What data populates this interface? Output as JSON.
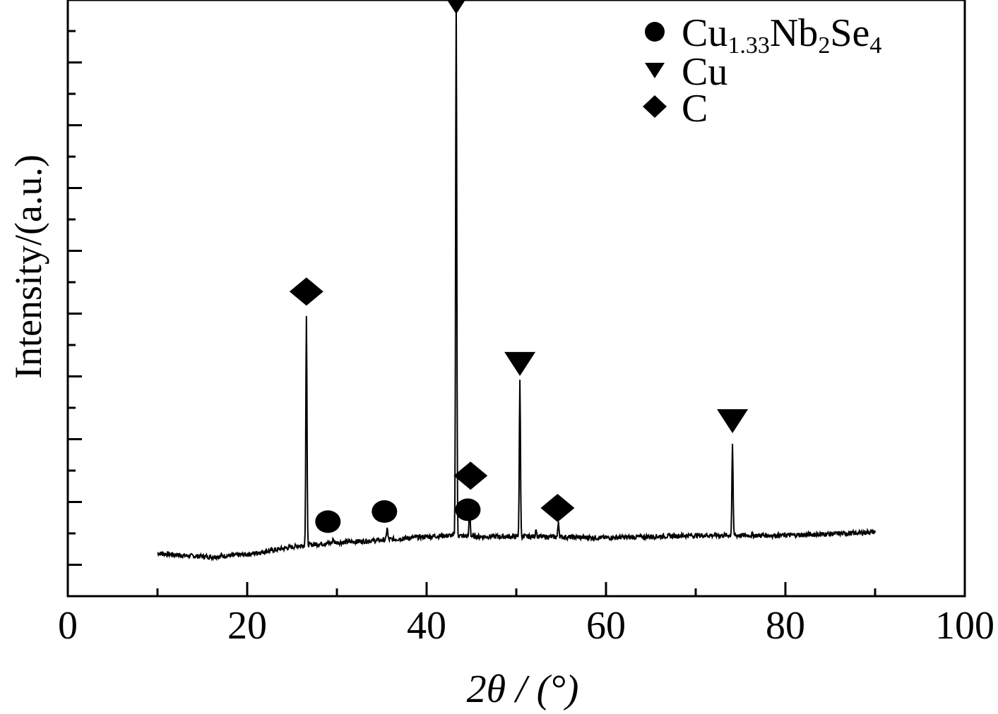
{
  "chart_data": {
    "type": "line",
    "xlabel": "2θ / (°)",
    "ylabel": "Intensity/(a.u.)",
    "xlim": [
      0,
      100
    ],
    "ylim": [
      0,
      1000
    ],
    "x_ticks": [
      "0",
      "20",
      "40",
      "60",
      "80",
      "100"
    ],
    "y_tick_labels": "none",
    "grid": false,
    "legend_position": "top-right",
    "colors": {
      "line": "#000000",
      "axis": "#000000",
      "background": "#ffffff"
    },
    "series": [
      {
        "baseline": [
          [
            10,
            72
          ],
          [
            13,
            68
          ],
          [
            16,
            66
          ],
          [
            20,
            70
          ],
          [
            24,
            80
          ],
          [
            26,
            85
          ],
          [
            30,
            90
          ],
          [
            35,
            94
          ],
          [
            40,
            100
          ],
          [
            43,
            102
          ],
          [
            45,
            100
          ],
          [
            48,
            100
          ],
          [
            52,
            100
          ],
          [
            60,
            98
          ],
          [
            70,
            102
          ],
          [
            80,
            102
          ],
          [
            88,
            106
          ],
          [
            90,
            108
          ]
        ],
        "peaks": [
          {
            "x": 26.6,
            "y": 470
          },
          {
            "x": 29.6,
            "y": 95
          },
          {
            "x": 35.6,
            "y": 115
          },
          {
            "x": 43.3,
            "y": 1000
          },
          {
            "x": 44.8,
            "y": 150
          },
          {
            "x": 50.4,
            "y": 360
          },
          {
            "x": 52.2,
            "y": 112
          },
          {
            "x": 54.7,
            "y": 125
          },
          {
            "x": 74.1,
            "y": 255
          }
        ]
      }
    ],
    "legend": [
      {
        "marker": "circle",
        "text_main": "Cu",
        "sub1": "1.33",
        "text_mid": "Nb",
        "sub2": "2",
        "text_end": "Se",
        "sub3": "4"
      },
      {
        "marker": "triangle-down",
        "label": "Cu"
      },
      {
        "marker": "diamond",
        "label": "C"
      }
    ],
    "markers": [
      {
        "phase": "C",
        "shape": "diamond",
        "x": 26.6,
        "y": 511
      },
      {
        "phase": "Cu1.33Nb2Se4",
        "shape": "circle",
        "x": 29.0,
        "y": 125
      },
      {
        "phase": "Cu1.33Nb2Se4",
        "shape": "circle",
        "x": 35.3,
        "y": 142
      },
      {
        "phase": "Cu",
        "shape": "triangle-down",
        "x": 43.3,
        "y": 1000
      },
      {
        "phase": "C",
        "shape": "diamond",
        "x": 44.9,
        "y": 202
      },
      {
        "phase": "Cu1.33Nb2Se4",
        "shape": "circle",
        "x": 44.6,
        "y": 145
      },
      {
        "phase": "Cu",
        "shape": "triangle-down",
        "x": 50.4,
        "y": 393
      },
      {
        "phase": "C",
        "shape": "diamond",
        "x": 54.6,
        "y": 148
      },
      {
        "phase": "Cu",
        "shape": "triangle-down",
        "x": 74.1,
        "y": 297
      }
    ]
  }
}
